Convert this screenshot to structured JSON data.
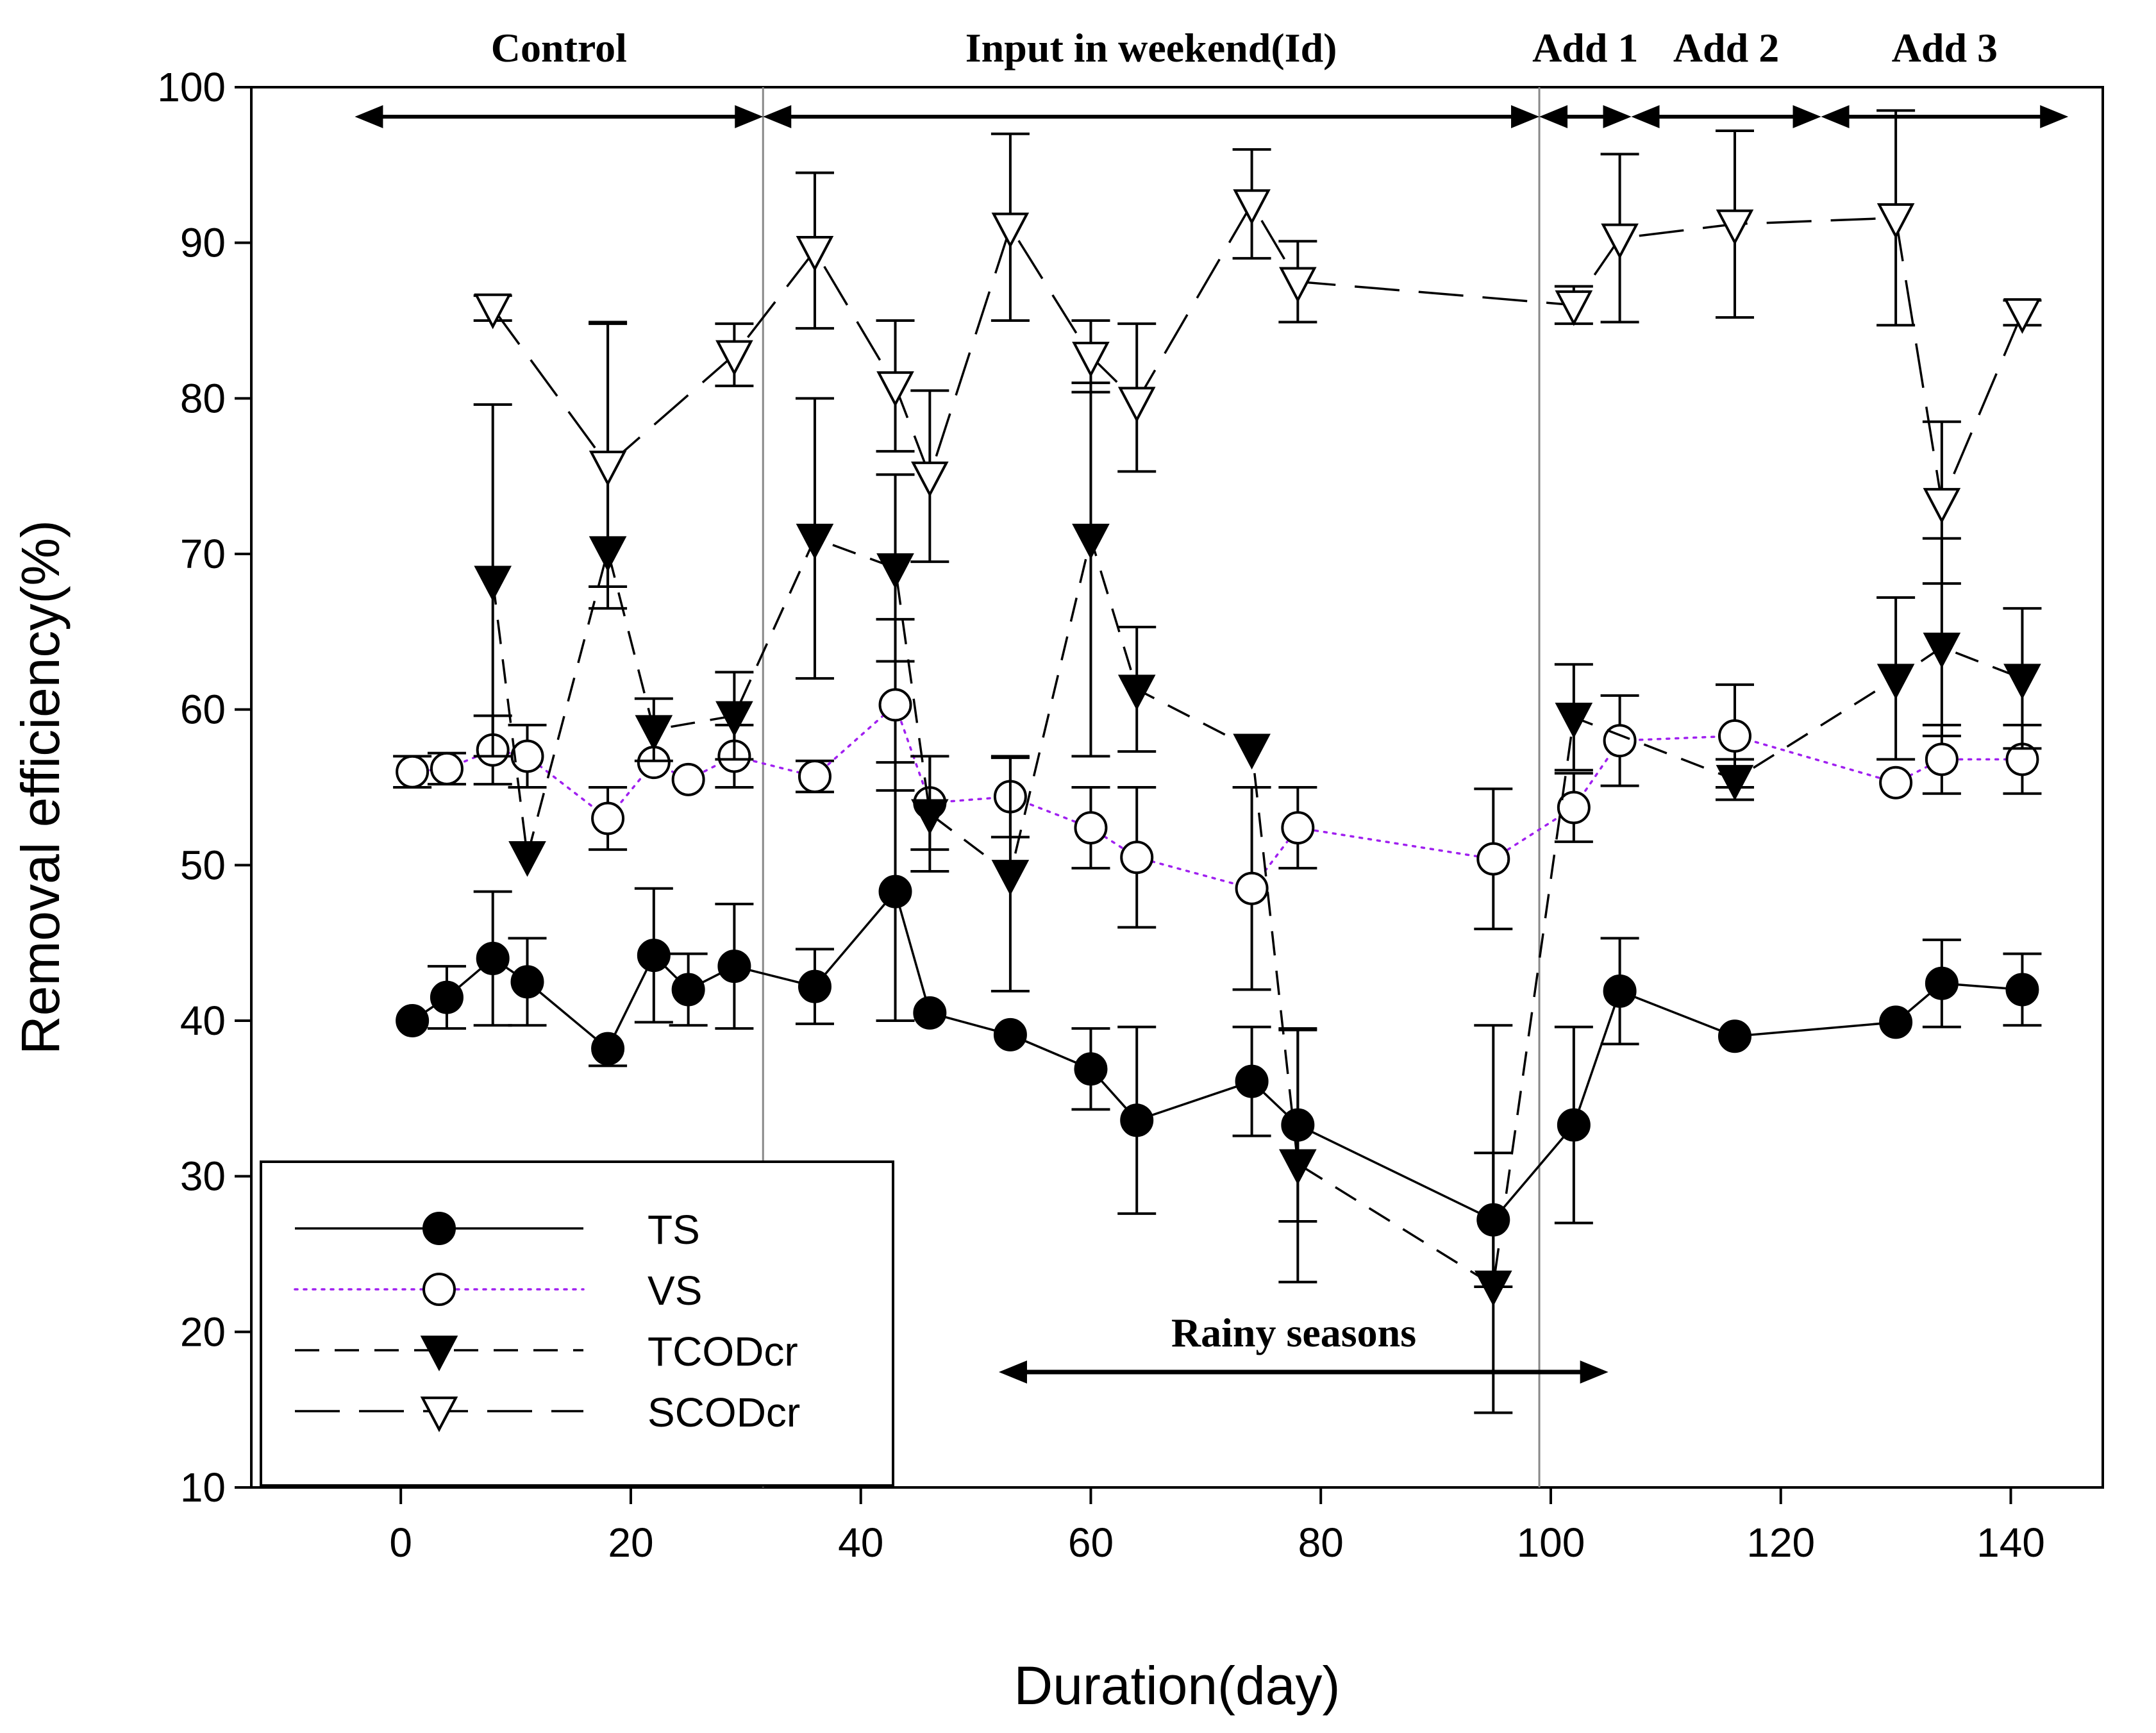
{
  "chart_data": {
    "type": "line",
    "xlabel": "Duration(day)",
    "ylabel": "Removal efficiency(%)",
    "xlim": [
      -13,
      148
    ],
    "ylim": [
      10,
      100
    ],
    "xticks": [
      "0",
      "20",
      "40",
      "60",
      "80",
      "100",
      "120",
      "140"
    ],
    "yticks": [
      "10",
      "20",
      "30",
      "40",
      "50",
      "60",
      "70",
      "80",
      "90",
      "100"
    ],
    "series": [
      {
        "name": "TS",
        "marker": "filled-circle",
        "line": "solid",
        "color": "#000000",
        "x": [
          1,
          4,
          8,
          11,
          18,
          22,
          25,
          29,
          36,
          43,
          46,
          53,
          60,
          64,
          74,
          78,
          95,
          102,
          106,
          116,
          130,
          134,
          141
        ],
        "y": [
          40,
          41.5,
          44,
          42.5,
          38.2,
          44.2,
          42,
          43.5,
          42.2,
          48.3,
          40.5,
          39.1,
          36.9,
          33.6,
          36.1,
          33.3,
          27.2,
          33.3,
          41.9,
          39,
          39.9,
          42.4,
          42
        ],
        "err_up": [
          0,
          2,
          4.3,
          2.8,
          0,
          4.3,
          2.3,
          4,
          2.4,
          8.3,
          0,
          0,
          2.6,
          6,
          3.5,
          6.2,
          4.3,
          6.3,
          3.4,
          0,
          0,
          2.8,
          2.3
        ],
        "err_down": [
          0,
          2,
          4.3,
          2.8,
          1.1,
          4.3,
          2.3,
          4,
          2.4,
          8.3,
          0,
          0,
          2.6,
          6,
          3.5,
          6.2,
          4.3,
          6.3,
          3.4,
          0,
          0,
          2.8,
          2.3
        ]
      },
      {
        "name": "VS",
        "marker": "open-circle",
        "line": "dotted",
        "color": "#a020f0",
        "x": [
          1,
          4,
          8,
          11,
          18,
          22,
          25,
          29,
          36,
          43,
          46,
          53,
          60,
          64,
          74,
          78,
          95,
          102,
          106,
          116,
          130,
          134,
          141
        ],
        "y": [
          56,
          56.2,
          57.4,
          57,
          53,
          56.6,
          55.5,
          57,
          55.7,
          60.3,
          54,
          54.4,
          52.4,
          50.5,
          48.5,
          52.4,
          50.4,
          53.7,
          58,
          58.3,
          55.3,
          56.8,
          56.8
        ],
        "err_up": [
          1,
          1,
          2.2,
          2,
          2,
          0,
          0,
          2,
          1,
          5.5,
          3,
          2.6,
          2.6,
          4.5,
          6.5,
          2.6,
          4.5,
          2.2,
          2.9,
          3.3,
          0,
          2.2,
          2.2
        ],
        "err_down": [
          1,
          1,
          2.2,
          2,
          2,
          0,
          0,
          2,
          1,
          5.5,
          3,
          2.6,
          2.6,
          4.5,
          6.5,
          2.6,
          4.5,
          2.2,
          2.9,
          3.3,
          0,
          2.2,
          2.2
        ]
      },
      {
        "name": "TCODcr",
        "marker": "filled-triangle-down",
        "line": "dashed",
        "color": "#000000",
        "x": [
          8,
          11,
          18,
          22,
          29,
          36,
          43,
          46,
          53,
          60,
          64,
          74,
          78,
          95,
          102,
          116,
          130,
          134,
          141
        ],
        "y": [
          68.3,
          50.6,
          70.2,
          58.7,
          59.6,
          71,
          69.1,
          53.3,
          49.4,
          71,
          61.3,
          57.5,
          30.8,
          23,
          59.5,
          55.5,
          62,
          64,
          62
        ],
        "err_up": [
          11.3,
          0,
          14.6,
          2,
          2.8,
          9,
          6,
          3.7,
          7.5,
          10,
          4,
          0,
          8.6,
          16.7,
          3.4,
          1.3,
          5.2,
          7,
          4.5
        ],
        "err_down": [
          11.3,
          0,
          2.3,
          2,
          2.8,
          9,
          6,
          3.7,
          7.5,
          14,
          4,
          0,
          7.6,
          8.2,
          3.4,
          1.3,
          5.2,
          5.7,
          4.5
        ]
      },
      {
        "name": "SCODcr",
        "marker": "open-triangle-down",
        "line": "long-dashed",
        "color": "#000000",
        "x": [
          8,
          18,
          29,
          36,
          43,
          46,
          53,
          60,
          64,
          74,
          78,
          102,
          106,
          116,
          130,
          134,
          141
        ],
        "y": [
          85.8,
          75.7,
          82.8,
          89.5,
          80.8,
          75,
          91,
          82.7,
          79.8,
          92.5,
          87.5,
          86,
          90.3,
          91.2,
          91.6,
          73.3,
          85.5
        ],
        "err_up": [
          0.8,
          9.2,
          2,
          5,
          4.2,
          5.5,
          6,
          2.3,
          5,
          3.5,
          2.6,
          1.2,
          5.4,
          6,
          6.9,
          5.2,
          0.8
        ],
        "err_down": [
          0.8,
          9.2,
          2,
          5,
          4.2,
          5.5,
          6,
          2.3,
          4.5,
          3.5,
          2.6,
          1.2,
          5.4,
          6,
          6.9,
          5.2,
          0.8
        ]
      }
    ],
    "phase_boundaries_x": [
      31.5,
      99
    ],
    "phases": [
      {
        "label": "Control",
        "x_start": -4,
        "x_end": 31.5
      },
      {
        "label": "Input in weekend(Id)",
        "x_start": 31.5,
        "x_end": 99
      },
      {
        "label": "Add 1",
        "x_start": 99,
        "x_end": 107
      },
      {
        "label": "Add 2",
        "x_start": 107,
        "x_end": 123.5
      },
      {
        "label": "Add 3",
        "x_start": 123.5,
        "x_end": 145
      }
    ],
    "annotations": [
      {
        "label": "Rainy seasons",
        "x_start": 52,
        "x_end": 105,
        "y": 17.5
      }
    ],
    "legend_position": "bottom-left"
  }
}
